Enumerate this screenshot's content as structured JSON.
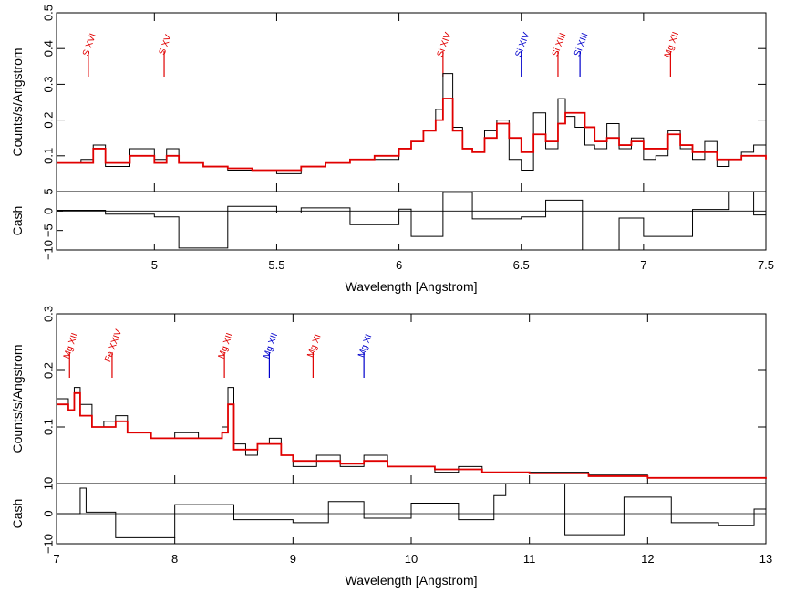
{
  "colors": {
    "data": "#000000",
    "model": "#e00000",
    "line_red": "#e00000",
    "line_blue": "#0000cc",
    "axis": "#000000"
  },
  "chart_data": [
    {
      "type": "line",
      "panel": "top",
      "xlabel": "Wavelength [Angstrom]",
      "ylabel": "Counts/s/Angstrom",
      "xlim": [
        4.6,
        7.5
      ],
      "ylim": [
        0,
        0.5
      ],
      "xticks": [
        "5",
        "5.5",
        "6",
        "6.5",
        "7",
        "7.5"
      ],
      "yticks": [
        "0.1",
        "0.2",
        "0.3",
        "0.4",
        "0.5"
      ],
      "line_markers": [
        {
          "label": "S XVI",
          "x": 4.73,
          "color": "red"
        },
        {
          "label": "S XV",
          "x": 5.04,
          "color": "red"
        },
        {
          "label": "Si XIV",
          "x": 6.18,
          "color": "red"
        },
        {
          "label": "Si XIV",
          "x": 6.5,
          "color": "blue"
        },
        {
          "label": "Si XIII",
          "x": 6.65,
          "color": "red"
        },
        {
          "label": "Si XIII",
          "x": 6.74,
          "color": "blue"
        },
        {
          "label": "Mg XII",
          "x": 7.11,
          "color": "red"
        }
      ],
      "series": [
        {
          "name": "",
          "role": "data",
          "x": [
            4.6,
            4.7,
            4.75,
            4.8,
            4.9,
            5.0,
            5.05,
            5.1,
            5.2,
            5.3,
            5.4,
            5.5,
            5.6,
            5.7,
            5.8,
            5.9,
            6.0,
            6.05,
            6.1,
            6.15,
            6.18,
            6.22,
            6.26,
            6.3,
            6.35,
            6.4,
            6.45,
            6.5,
            6.55,
            6.6,
            6.65,
            6.68,
            6.72,
            6.76,
            6.8,
            6.85,
            6.9,
            6.95,
            7.0,
            7.05,
            7.1,
            7.15,
            7.2,
            7.25,
            7.3,
            7.35,
            7.4,
            7.45,
            7.5
          ],
          "y": [
            0.08,
            0.09,
            0.13,
            0.07,
            0.12,
            0.09,
            0.12,
            0.08,
            0.07,
            0.06,
            0.06,
            0.05,
            0.07,
            0.08,
            0.09,
            0.09,
            0.12,
            0.14,
            0.17,
            0.23,
            0.33,
            0.18,
            0.12,
            0.11,
            0.17,
            0.2,
            0.09,
            0.06,
            0.22,
            0.12,
            0.26,
            0.21,
            0.18,
            0.13,
            0.12,
            0.19,
            0.12,
            0.15,
            0.09,
            0.1,
            0.17,
            0.12,
            0.09,
            0.14,
            0.07,
            0.09,
            0.11,
            0.13,
            0.08
          ]
        },
        {
          "name": "",
          "role": "model",
          "x": [
            4.6,
            4.7,
            4.75,
            4.8,
            4.9,
            5.0,
            5.05,
            5.1,
            5.2,
            5.3,
            5.4,
            5.5,
            5.6,
            5.7,
            5.8,
            5.9,
            6.0,
            6.05,
            6.1,
            6.15,
            6.18,
            6.22,
            6.26,
            6.3,
            6.35,
            6.4,
            6.45,
            6.5,
            6.55,
            6.6,
            6.65,
            6.68,
            6.72,
            6.76,
            6.8,
            6.85,
            6.9,
            6.95,
            7.0,
            7.05,
            7.1,
            7.15,
            7.2,
            7.25,
            7.3,
            7.35,
            7.4,
            7.45,
            7.5
          ],
          "y": [
            0.08,
            0.08,
            0.12,
            0.08,
            0.1,
            0.08,
            0.1,
            0.08,
            0.07,
            0.065,
            0.06,
            0.06,
            0.07,
            0.08,
            0.09,
            0.1,
            0.12,
            0.14,
            0.17,
            0.2,
            0.26,
            0.17,
            0.12,
            0.11,
            0.15,
            0.19,
            0.15,
            0.11,
            0.16,
            0.14,
            0.19,
            0.22,
            0.22,
            0.18,
            0.14,
            0.15,
            0.13,
            0.14,
            0.12,
            0.12,
            0.16,
            0.13,
            0.11,
            0.11,
            0.09,
            0.09,
            0.1,
            0.1,
            0.09
          ]
        }
      ],
      "residuals": {
        "ylabel": "Cash",
        "ylim": [
          -10,
          5
        ],
        "yticks": [
          "−10",
          "−5",
          "0",
          "5"
        ],
        "x": [
          4.6,
          4.8,
          5.0,
          5.1,
          5.3,
          5.5,
          5.6,
          5.8,
          6.0,
          6.05,
          6.18,
          6.3,
          6.5,
          6.6,
          6.75,
          6.9,
          7.0,
          7.2,
          7.35,
          7.45,
          7.5
        ],
        "y": [
          0.2,
          -0.8,
          -1.5,
          -9.5,
          1.2,
          -0.5,
          0.8,
          -3.5,
          0.5,
          -6.5,
          4.8,
          -2.0,
          -1.5,
          2.8,
          -10.5,
          -1.8,
          -6.5,
          0.4,
          5.0,
          -1.0,
          -9.0
        ]
      }
    },
    {
      "type": "line",
      "panel": "bottom",
      "xlabel": "Wavelength [Angstrom]",
      "ylabel": "Counts/s/Angstrom",
      "xlim": [
        7,
        13
      ],
      "ylim": [
        0,
        0.3
      ],
      "xticks": [
        "7",
        "8",
        "9",
        "10",
        "11",
        "12",
        "13"
      ],
      "yticks": [
        "0.1",
        "0.2",
        "0.3"
      ],
      "line_markers": [
        {
          "label": "Mg XII",
          "x": 7.11,
          "color": "red"
        },
        {
          "label": "Fe XXIV",
          "x": 7.47,
          "color": "red"
        },
        {
          "label": "Mg XII",
          "x": 8.42,
          "color": "red"
        },
        {
          "label": "Mg XII",
          "x": 8.8,
          "color": "blue"
        },
        {
          "label": "Mg XI",
          "x": 9.17,
          "color": "red"
        },
        {
          "label": "Mg XI",
          "x": 9.6,
          "color": "blue"
        }
      ],
      "series": [
        {
          "name": "",
          "role": "data",
          "x": [
            7.0,
            7.1,
            7.15,
            7.2,
            7.3,
            7.4,
            7.5,
            7.6,
            7.8,
            8.0,
            8.2,
            8.4,
            8.45,
            8.5,
            8.6,
            8.7,
            8.8,
            8.9,
            9.0,
            9.2,
            9.4,
            9.6,
            9.8,
            10.0,
            10.2,
            10.4,
            10.6,
            10.8,
            11.0,
            11.5,
            12.0,
            12.5,
            13.0
          ],
          "y": [
            0.15,
            0.13,
            0.17,
            0.14,
            0.1,
            0.11,
            0.12,
            0.09,
            0.08,
            0.09,
            0.08,
            0.1,
            0.17,
            0.07,
            0.05,
            0.07,
            0.08,
            0.05,
            0.03,
            0.05,
            0.03,
            0.05,
            0.03,
            0.03,
            0.02,
            0.03,
            0.02,
            0.02,
            0.02,
            0.015,
            0.01,
            0.01,
            0.01
          ]
        },
        {
          "name": "",
          "role": "model",
          "x": [
            7.0,
            7.1,
            7.15,
            7.2,
            7.3,
            7.4,
            7.5,
            7.6,
            7.8,
            8.0,
            8.2,
            8.4,
            8.45,
            8.5,
            8.6,
            8.7,
            8.8,
            8.9,
            9.0,
            9.2,
            9.4,
            9.6,
            9.8,
            10.0,
            10.2,
            10.4,
            10.6,
            10.8,
            11.0,
            11.5,
            12.0,
            12.5,
            13.0
          ],
          "y": [
            0.14,
            0.13,
            0.16,
            0.12,
            0.1,
            0.1,
            0.11,
            0.09,
            0.08,
            0.08,
            0.08,
            0.09,
            0.14,
            0.06,
            0.06,
            0.07,
            0.07,
            0.05,
            0.04,
            0.04,
            0.035,
            0.04,
            0.03,
            0.03,
            0.025,
            0.025,
            0.02,
            0.02,
            0.018,
            0.013,
            0.01,
            0.01,
            0.008
          ]
        }
      ],
      "residuals": {
        "ylabel": "Cash",
        "ylim": [
          -10,
          10
        ],
        "yticks": [
          "−10",
          "0",
          "10"
        ],
        "x": [
          7.0,
          7.2,
          7.25,
          7.5,
          8.0,
          8.5,
          9.0,
          9.3,
          9.6,
          10.0,
          10.4,
          10.7,
          10.8,
          11.0,
          11.3,
          11.8,
          12.2,
          12.6,
          12.9,
          13.0
        ],
        "y": [
          0.0,
          8.5,
          0.5,
          -8.0,
          3.0,
          -2.0,
          -3.0,
          4.0,
          -1.5,
          3.5,
          -2.0,
          6.0,
          12.0,
          10.0,
          -7.0,
          5.5,
          -3.0,
          -4.0,
          1.5,
          -3.0
        ]
      }
    }
  ]
}
